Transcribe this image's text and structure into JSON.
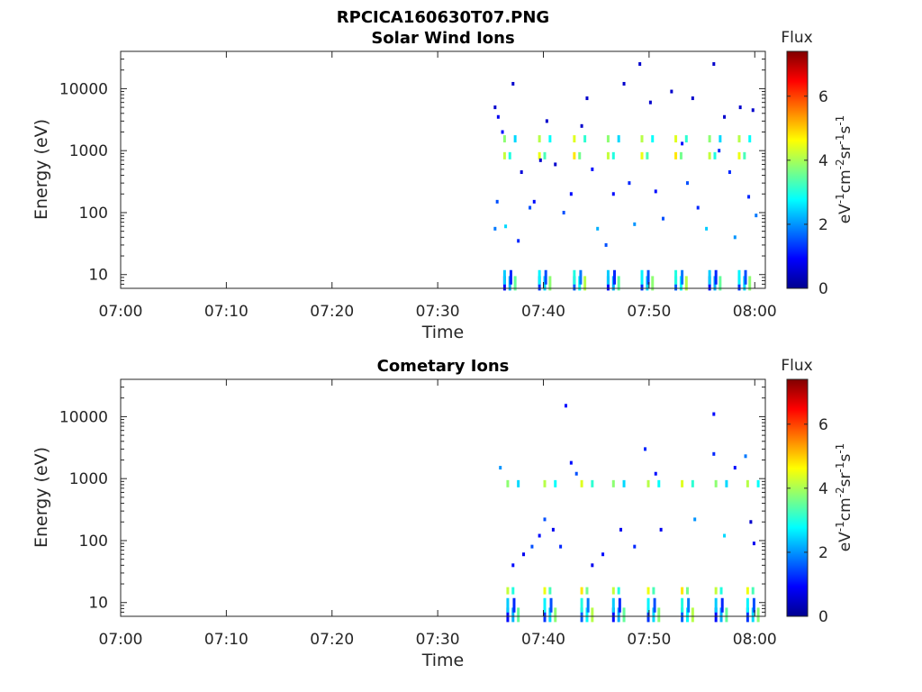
{
  "figure": {
    "title": "RPCICA160630T07.PNG"
  },
  "chart_data": [
    {
      "type": "heatmap",
      "title": "Solar Wind Ions",
      "xlabel": "Time",
      "ylabel": "Energy (eV)",
      "x_ticks": [
        "07:00",
        "07:10",
        "07:20",
        "07:30",
        "07:40",
        "07:50",
        "08:00"
      ],
      "y_ticks": [
        "10",
        "100",
        "1000",
        "10000"
      ],
      "y_scale": "log",
      "ylim": [
        6,
        40000
      ],
      "xlim": [
        "07:00",
        "08:00"
      ],
      "colorbar": {
        "title": "Flux",
        "label": "eV-1cm-2sr-1s-1",
        "ticks": [
          "0",
          "2",
          "4",
          "6"
        ],
        "range": [
          0,
          7.4
        ]
      },
      "bursts": [
        {
          "t": 36.2,
          "energies": [
            8,
            10,
            800,
            1500
          ]
        },
        {
          "t": 39.5,
          "energies": [
            8,
            10,
            800,
            1500
          ]
        },
        {
          "t": 42.8,
          "energies": [
            8,
            10,
            800,
            1500
          ]
        },
        {
          "t": 46.0,
          "energies": [
            8,
            10,
            800,
            1500
          ]
        },
        {
          "t": 49.2,
          "energies": [
            8,
            10,
            800,
            1500
          ]
        },
        {
          "t": 52.4,
          "energies": [
            8,
            10,
            800,
            1500
          ]
        },
        {
          "t": 55.6,
          "energies": [
            8,
            10,
            800,
            1500
          ]
        },
        {
          "t": 58.4,
          "energies": [
            8,
            10,
            800,
            1500
          ]
        }
      ],
      "points": [
        {
          "t": 35.3,
          "e": 5000,
          "v": 0.5
        },
        {
          "t": 35.6,
          "e": 3500,
          "v": 0.8
        },
        {
          "t": 36.0,
          "e": 2000,
          "v": 1.0
        },
        {
          "t": 35.5,
          "e": 150,
          "v": 1.5
        },
        {
          "t": 35.3,
          "e": 55,
          "v": 1.8
        },
        {
          "t": 36.3,
          "e": 60,
          "v": 2.5
        },
        {
          "t": 37.0,
          "e": 12000,
          "v": 0.5
        },
        {
          "t": 37.5,
          "e": 35,
          "v": 1.2
        },
        {
          "t": 37.8,
          "e": 450,
          "v": 0.6
        },
        {
          "t": 38.6,
          "e": 120,
          "v": 1.5
        },
        {
          "t": 39.0,
          "e": 150,
          "v": 1.0
        },
        {
          "t": 39.6,
          "e": 700,
          "v": 0.5
        },
        {
          "t": 40.2,
          "e": 3000,
          "v": 0.5
        },
        {
          "t": 41.0,
          "e": 600,
          "v": 0.5
        },
        {
          "t": 41.8,
          "e": 100,
          "v": 1.5
        },
        {
          "t": 42.5,
          "e": 200,
          "v": 1.0
        },
        {
          "t": 43.5,
          "e": 2500,
          "v": 0.5
        },
        {
          "t": 44.0,
          "e": 7000,
          "v": 0.5
        },
        {
          "t": 44.5,
          "e": 500,
          "v": 1.0
        },
        {
          "t": 45.0,
          "e": 55,
          "v": 2.2
        },
        {
          "t": 45.8,
          "e": 30,
          "v": 1.5
        },
        {
          "t": 46.5,
          "e": 200,
          "v": 1.0
        },
        {
          "t": 47.5,
          "e": 12000,
          "v": 0.5
        },
        {
          "t": 48.0,
          "e": 300,
          "v": 1.2
        },
        {
          "t": 48.5,
          "e": 65,
          "v": 2.0
        },
        {
          "t": 49.0,
          "e": 25000,
          "v": 0.5
        },
        {
          "t": 50.0,
          "e": 6000,
          "v": 0.5
        },
        {
          "t": 50.5,
          "e": 220,
          "v": 1.0
        },
        {
          "t": 51.2,
          "e": 80,
          "v": 1.5
        },
        {
          "t": 52.0,
          "e": 9000,
          "v": 0.5
        },
        {
          "t": 53.0,
          "e": 1300,
          "v": 1.0
        },
        {
          "t": 53.5,
          "e": 300,
          "v": 1.5
        },
        {
          "t": 54.0,
          "e": 7000,
          "v": 0.5
        },
        {
          "t": 54.5,
          "e": 120,
          "v": 1.2
        },
        {
          "t": 55.3,
          "e": 55,
          "v": 2.4
        },
        {
          "t": 56.0,
          "e": 25000,
          "v": 0.5
        },
        {
          "t": 56.5,
          "e": 1000,
          "v": 1.2
        },
        {
          "t": 57.0,
          "e": 3500,
          "v": 0.5
        },
        {
          "t": 57.5,
          "e": 450,
          "v": 1.2
        },
        {
          "t": 58.0,
          "e": 40,
          "v": 2.0
        },
        {
          "t": 58.5,
          "e": 5000,
          "v": 0.5
        },
        {
          "t": 59.3,
          "e": 180,
          "v": 1.2
        },
        {
          "t": 59.7,
          "e": 4500,
          "v": 0.5
        },
        {
          "t": 60.0,
          "e": 90,
          "v": 1.8
        }
      ]
    },
    {
      "type": "heatmap",
      "title": "Cometary Ions",
      "xlabel": "Time",
      "ylabel": "Energy (eV)",
      "x_ticks": [
        "07:00",
        "07:10",
        "07:20",
        "07:30",
        "07:40",
        "07:50",
        "08:00"
      ],
      "y_ticks": [
        "10",
        "100",
        "1000",
        "10000"
      ],
      "y_scale": "log",
      "ylim": [
        6,
        40000
      ],
      "xlim": [
        "07:00",
        "08:00"
      ],
      "colorbar": {
        "title": "Flux",
        "label": "eV-1cm-2sr-1s-1",
        "ticks": [
          "0",
          "2",
          "4",
          "6"
        ],
        "range": [
          0,
          7.4
        ]
      },
      "bursts": [
        {
          "t": 36.5,
          "energies": [
            7,
            10,
            15,
            800
          ]
        },
        {
          "t": 40.0,
          "energies": [
            7,
            10,
            15,
            800
          ]
        },
        {
          "t": 43.5,
          "energies": [
            7,
            10,
            15,
            800
          ]
        },
        {
          "t": 46.5,
          "energies": [
            7,
            10,
            15,
            800
          ]
        },
        {
          "t": 49.8,
          "energies": [
            7,
            10,
            15,
            800
          ]
        },
        {
          "t": 53.0,
          "energies": [
            7,
            10,
            15,
            800
          ]
        },
        {
          "t": 56.2,
          "energies": [
            7,
            10,
            15,
            800
          ]
        },
        {
          "t": 59.2,
          "energies": [
            7,
            10,
            15,
            800
          ]
        }
      ],
      "points": [
        {
          "t": 35.8,
          "e": 1500,
          "v": 2.0
        },
        {
          "t": 37.0,
          "e": 40,
          "v": 1.0
        },
        {
          "t": 38.0,
          "e": 60,
          "v": 0.8
        },
        {
          "t": 38.8,
          "e": 80,
          "v": 1.5
        },
        {
          "t": 39.5,
          "e": 120,
          "v": 1.0
        },
        {
          "t": 40.0,
          "e": 220,
          "v": 1.5
        },
        {
          "t": 40.8,
          "e": 150,
          "v": 0.8
        },
        {
          "t": 41.5,
          "e": 80,
          "v": 1.2
        },
        {
          "t": 42.0,
          "e": 15000,
          "v": 1.0
        },
        {
          "t": 42.5,
          "e": 1800,
          "v": 1.0
        },
        {
          "t": 43.0,
          "e": 1200,
          "v": 1.5
        },
        {
          "t": 44.5,
          "e": 40,
          "v": 0.8
        },
        {
          "t": 45.5,
          "e": 60,
          "v": 1.0
        },
        {
          "t": 47.2,
          "e": 150,
          "v": 0.8
        },
        {
          "t": 48.5,
          "e": 80,
          "v": 1.2
        },
        {
          "t": 49.5,
          "e": 3000,
          "v": 1.2
        },
        {
          "t": 50.5,
          "e": 1200,
          "v": 1.0
        },
        {
          "t": 51.0,
          "e": 150,
          "v": 0.8
        },
        {
          "t": 54.2,
          "e": 220,
          "v": 2.0
        },
        {
          "t": 56.0,
          "e": 11000,
          "v": 1.0
        },
        {
          "t": 56.0,
          "e": 2500,
          "v": 1.2
        },
        {
          "t": 57.0,
          "e": 120,
          "v": 2.5
        },
        {
          "t": 58.0,
          "e": 1500,
          "v": 1.0
        },
        {
          "t": 59.0,
          "e": 2300,
          "v": 1.8
        },
        {
          "t": 59.5,
          "e": 200,
          "v": 0.5
        },
        {
          "t": 59.8,
          "e": 90,
          "v": 0.8
        }
      ]
    }
  ]
}
